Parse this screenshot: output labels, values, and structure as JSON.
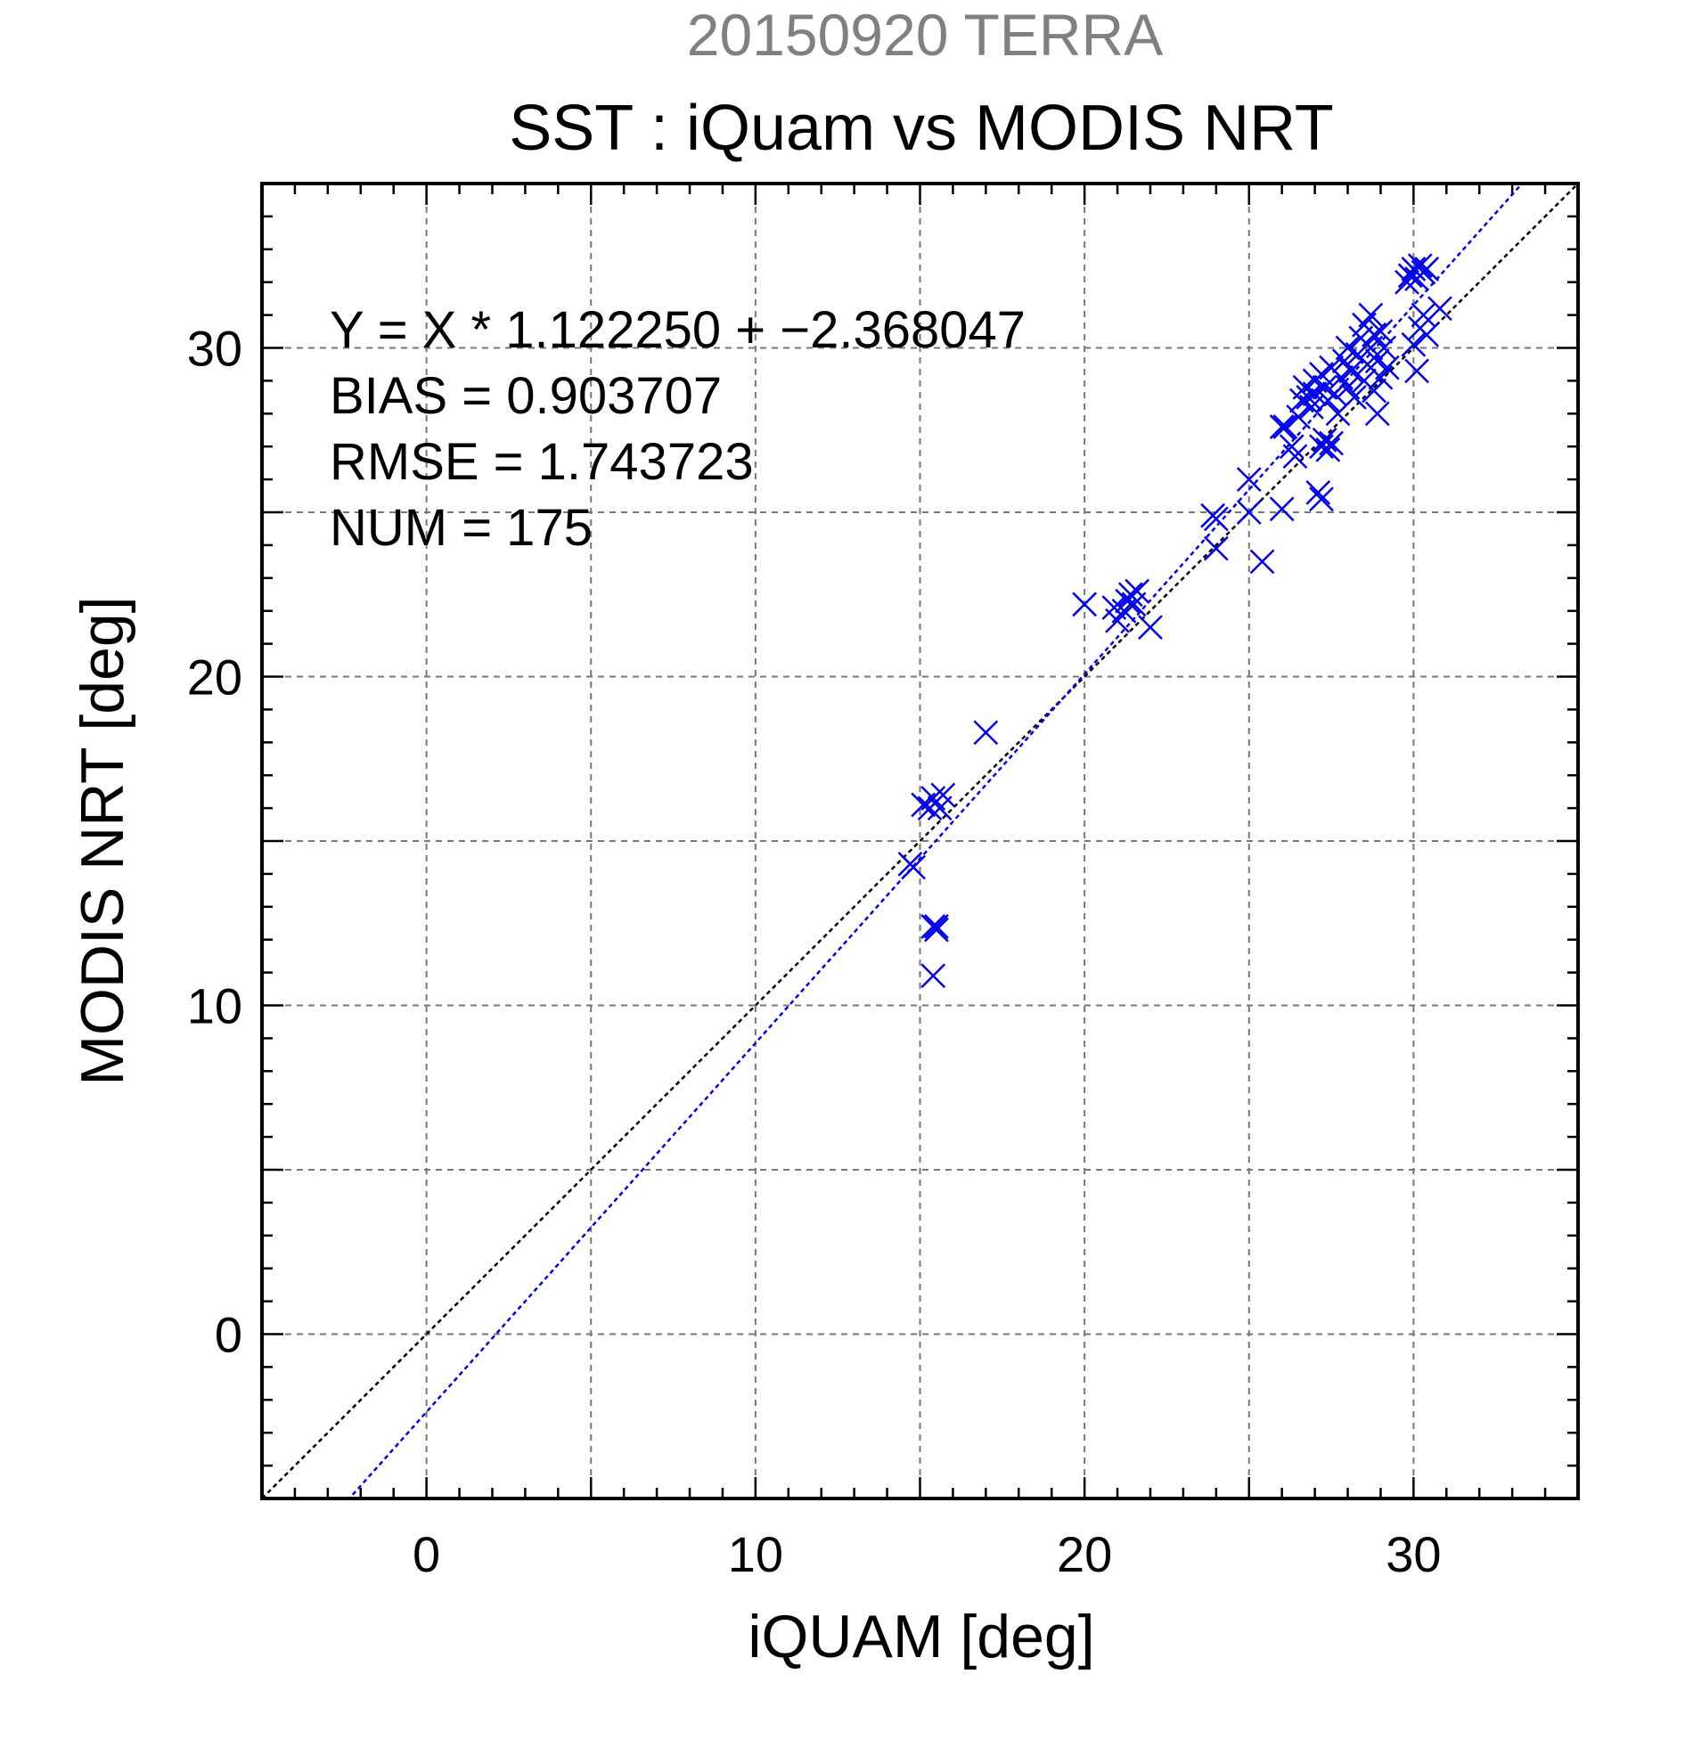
{
  "header": {
    "date_label": "20150920 TERRA",
    "title": "SST : iQuam vs MODIS NRT"
  },
  "stats": {
    "fit": "Y = X * 1.122250 + −2.368047",
    "bias": "BIAS = 0.903707",
    "rmse": "RMSE = 1.743723",
    "num": "NUM = 175"
  },
  "colors": {
    "points": "#0000ee",
    "fit_line": "#0000ee",
    "identity_line": "#000000",
    "grid": "#777777",
    "date_label": "#808080"
  },
  "chart_data": {
    "type": "scatter",
    "xlabel": "iQUAM [deg]",
    "ylabel": "MODIS NRT [deg]",
    "xlim": [
      -5,
      35
    ],
    "ylim": [
      -5,
      35
    ],
    "x_ticks": [
      0,
      10,
      20,
      30
    ],
    "y_ticks": [
      0,
      10,
      20,
      30
    ],
    "grid": true,
    "marker": "x",
    "fit": {
      "slope": 1.12225,
      "intercept": -2.368047
    },
    "identity_line": true,
    "points": [
      [
        14.7,
        14.3
      ],
      [
        14.8,
        14.2
      ],
      [
        15.4,
        12.4
      ],
      [
        15.5,
        12.4
      ],
      [
        15.5,
        12.3
      ],
      [
        15.4,
        10.9
      ],
      [
        15.1,
        16.1
      ],
      [
        15.3,
        16.0
      ],
      [
        15.4,
        16.3
      ],
      [
        15.6,
        16.0
      ],
      [
        15.7,
        16.4
      ],
      [
        17.0,
        18.3
      ],
      [
        20.0,
        22.2
      ],
      [
        20.9,
        22.1
      ],
      [
        21.0,
        21.7
      ],
      [
        21.2,
        22.0
      ],
      [
        21.3,
        22.3
      ],
      [
        21.4,
        22.5
      ],
      [
        21.5,
        22.2
      ],
      [
        21.6,
        22.6
      ],
      [
        22.0,
        21.5
      ],
      [
        23.9,
        24.9
      ],
      [
        24.0,
        24.8
      ],
      [
        24.0,
        23.9
      ],
      [
        25.0,
        25.0
      ],
      [
        25.0,
        26.0
      ],
      [
        25.4,
        23.5
      ],
      [
        26.0,
        25.1
      ],
      [
        26.0,
        27.6
      ],
      [
        26.1,
        27.6
      ],
      [
        26.3,
        27.0
      ],
      [
        26.4,
        26.7
      ],
      [
        26.5,
        27.9
      ],
      [
        26.6,
        28.4
      ],
      [
        26.7,
        28.8
      ],
      [
        26.8,
        28.5
      ],
      [
        26.9,
        28.2
      ],
      [
        27.0,
        29.0
      ],
      [
        27.0,
        28.6
      ],
      [
        27.1,
        25.6
      ],
      [
        27.2,
        25.4
      ],
      [
        27.2,
        27.0
      ],
      [
        27.3,
        27.2
      ],
      [
        27.4,
        26.9
      ],
      [
        27.5,
        27.1
      ],
      [
        27.2,
        29.2
      ],
      [
        27.3,
        28.8
      ],
      [
        27.4,
        28.4
      ],
      [
        27.5,
        29.4
      ],
      [
        27.6,
        28.6
      ],
      [
        27.7,
        28.0
      ],
      [
        27.8,
        29.1
      ],
      [
        27.9,
        29.6
      ],
      [
        28.0,
        28.8
      ],
      [
        28.0,
        30.0
      ],
      [
        28.1,
        29.3
      ],
      [
        28.2,
        28.5
      ],
      [
        28.3,
        29.8
      ],
      [
        28.4,
        30.3
      ],
      [
        28.5,
        29.0
      ],
      [
        28.5,
        30.7
      ],
      [
        28.6,
        29.5
      ],
      [
        28.7,
        31.0
      ],
      [
        28.7,
        30.0
      ],
      [
        28.8,
        28.7
      ],
      [
        28.8,
        30.4
      ],
      [
        28.9,
        29.6
      ],
      [
        28.9,
        28.0
      ],
      [
        29.0,
        30.5
      ],
      [
        29.0,
        29.1
      ],
      [
        29.1,
        30.0
      ],
      [
        29.2,
        29.4
      ],
      [
        29.8,
        32.0
      ],
      [
        29.9,
        32.2
      ],
      [
        30.0,
        32.4
      ],
      [
        30.1,
        32.1
      ],
      [
        30.2,
        32.5
      ],
      [
        30.3,
        32.3
      ],
      [
        30.4,
        32.4
      ],
      [
        30.0,
        30.1
      ],
      [
        30.1,
        29.3
      ],
      [
        30.2,
        30.6
      ],
      [
        30.3,
        31.0
      ],
      [
        30.4,
        30.4
      ],
      [
        30.8,
        31.2
      ]
    ]
  }
}
